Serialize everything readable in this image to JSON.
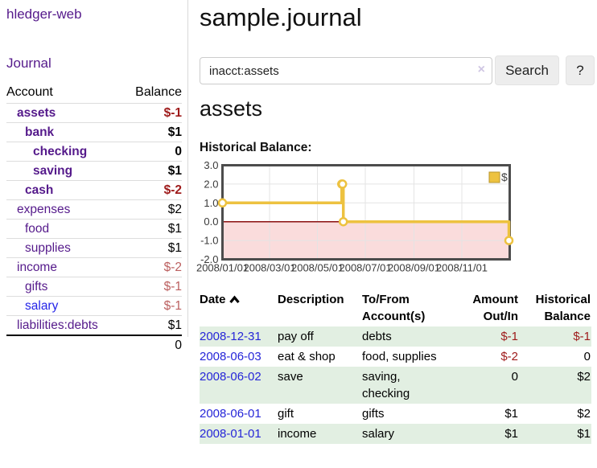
{
  "app": {
    "brand": "hledger-web",
    "nav_journal": "Journal"
  },
  "sidebar": {
    "accounts_header": {
      "account": "Account",
      "balance": "Balance"
    },
    "accounts": [
      {
        "name": "assets",
        "indent": 1,
        "balance": "$-1",
        "bold": true,
        "balance_style": "neg-strong"
      },
      {
        "name": "bank",
        "indent": 2,
        "balance": "$1",
        "bold": true,
        "balance_style": "normal"
      },
      {
        "name": "checking",
        "indent": 3,
        "balance": "0",
        "bold": true,
        "balance_style": "normal"
      },
      {
        "name": "saving",
        "indent": 3,
        "balance": "$1",
        "bold": true,
        "balance_style": "normal"
      },
      {
        "name": "cash",
        "indent": 2,
        "balance": "$-2",
        "bold": true,
        "balance_style": "neg-strong"
      },
      {
        "name": "expenses",
        "indent": 1,
        "balance": "$2",
        "bold": false,
        "balance_style": "normal"
      },
      {
        "name": "food",
        "indent": 2,
        "balance": "$1",
        "bold": false,
        "balance_style": "normal"
      },
      {
        "name": "supplies",
        "indent": 2,
        "balance": "$1",
        "bold": false,
        "balance_style": "normal"
      },
      {
        "name": "income",
        "indent": 1,
        "balance": "$-2",
        "bold": false,
        "balance_style": "neg-soft"
      },
      {
        "name": "gifts",
        "indent": 2,
        "balance": "$-1",
        "bold": false,
        "balance_style": "neg-soft"
      },
      {
        "name": "salary",
        "indent": 2,
        "balance": "$-1",
        "bold": false,
        "balance_style": "neg-soft",
        "link_color": "blue"
      },
      {
        "name": "liabilities:debts",
        "indent": 1,
        "balance": "$1",
        "bold": false,
        "balance_style": "normal"
      }
    ],
    "total": "0"
  },
  "header": {
    "title": "sample.journal"
  },
  "search": {
    "value": "inacct:assets",
    "clear_icon": "×",
    "button_label": "Search",
    "help_label": "?"
  },
  "account_page": {
    "title": "assets",
    "chart_label": "Historical Balance:"
  },
  "chart_data": {
    "type": "line",
    "step": true,
    "title": "Historical Balance",
    "series": [
      {
        "name": "$",
        "color": "#edc240",
        "points": [
          [
            "2008-01-01",
            1
          ],
          [
            "2008-06-01",
            2
          ],
          [
            "2008-06-02",
            2
          ],
          [
            "2008-06-03",
            0
          ],
          [
            "2008-12-31",
            -1
          ]
        ]
      }
    ],
    "x_range": [
      "2008-01-01",
      "2009-01-01"
    ],
    "x_ticks": [
      "2008/01/01",
      "2008/03/01",
      "2008/05/01",
      "2008/07/01",
      "2008/09/01",
      "2008/11/01"
    ],
    "y_ticks": [
      3.0,
      2.0,
      1.0,
      0.0,
      -1.0,
      -2.0
    ],
    "ylim": [
      -2,
      3
    ],
    "grid": true,
    "legend": {
      "label": "$",
      "position": "top-right"
    },
    "negative_region_color": "#fadcdc",
    "zero_line_color": "#8b1010",
    "border_color": "#4c4c4c",
    "grid_color": "#e4e4e4"
  },
  "register": {
    "columns": {
      "date": "Date",
      "description": "Description",
      "accounts": "To/From Account(s)",
      "amount": "Amount Out/In",
      "balance": "Historical Balance"
    },
    "rows": [
      {
        "date": "2008-12-31",
        "description": "pay off",
        "accounts": "debts",
        "amount": "$-1",
        "balance": "$-1"
      },
      {
        "date": "2008-06-03",
        "description": "eat & shop",
        "accounts": "food, supplies",
        "amount": "$-2",
        "balance": "0"
      },
      {
        "date": "2008-06-02",
        "description": "save",
        "accounts": "saving, checking",
        "amount": "0",
        "balance": "$2"
      },
      {
        "date": "2008-06-01",
        "description": "gift",
        "accounts": "gifts",
        "amount": "$1",
        "balance": "$2"
      },
      {
        "date": "2008-01-01",
        "description": "income",
        "accounts": "salary",
        "amount": "$1",
        "balance": "$1"
      }
    ]
  },
  "colors": {
    "link_purple": "#551a8b",
    "link_blue": "#2424e8",
    "date_link_blue": "#2626d8",
    "negative_strong": "#9e1a1a",
    "negative_soft": "#bb5f5f",
    "row_stripe_green": "#e2efe2",
    "chart_gold": "#edc240"
  }
}
